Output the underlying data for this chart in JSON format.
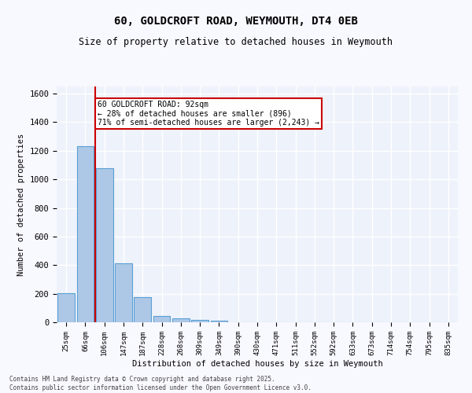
{
  "title": "60, GOLDCROFT ROAD, WEYMOUTH, DT4 0EB",
  "subtitle": "Size of property relative to detached houses in Weymouth",
  "xlabel": "Distribution of detached houses by size in Weymouth",
  "ylabel": "Number of detached properties",
  "categories": [
    "25sqm",
    "66sqm",
    "106sqm",
    "147sqm",
    "187sqm",
    "228sqm",
    "268sqm",
    "309sqm",
    "349sqm",
    "390sqm",
    "430sqm",
    "471sqm",
    "511sqm",
    "552sqm",
    "592sqm",
    "633sqm",
    "673sqm",
    "714sqm",
    "754sqm",
    "795sqm",
    "835sqm"
  ],
  "values": [
    205,
    1230,
    1080,
    415,
    175,
    42,
    25,
    15,
    10,
    0,
    0,
    0,
    0,
    0,
    0,
    0,
    0,
    0,
    0,
    0,
    0
  ],
  "bar_color": "#adc8e6",
  "bar_edge_color": "#5a9fd4",
  "property_line_x": 1.5,
  "annotation_text": "60 GOLDCROFT ROAD: 92sqm\n← 28% of detached houses are smaller (896)\n71% of semi-detached houses are larger (2,243) →",
  "annotation_box_color": "#ffffff",
  "annotation_box_edge_color": "#cc0000",
  "red_line_color": "#cc0000",
  "ylim": [
    0,
    1650
  ],
  "yticks": [
    0,
    200,
    400,
    600,
    800,
    1000,
    1200,
    1400,
    1600
  ],
  "background_color": "#eef2fb",
  "grid_color": "#ffffff",
  "fig_background": "#f8f8ff",
  "footnote": "Contains HM Land Registry data © Crown copyright and database right 2025.\nContains public sector information licensed under the Open Government Licence v3.0."
}
